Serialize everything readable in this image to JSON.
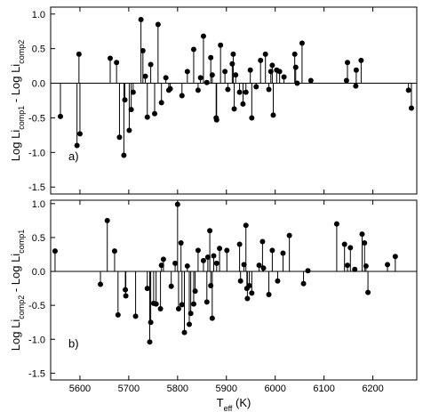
{
  "chart_data": [
    {
      "type": "stem",
      "annotation": "a)",
      "color": "#000000",
      "ylabel": [
        "Log Li",
        "comp1",
        " - Log Li",
        "comp2"
      ],
      "xlim": [
        5540,
        6290
      ],
      "ylim": [
        -1.6,
        1.1
      ],
      "xticks": [
        5600,
        5700,
        5800,
        5900,
        6000,
        6100,
        6200
      ],
      "yticks": [
        {
          "value": -1.5,
          "label": "-1.5"
        },
        {
          "value": -1.0,
          "label": "-1.0"
        },
        -0.5,
        {
          "value": 0.0,
          "label": "0.0"
        },
        0.5,
        {
          "value": 1.0,
          "label": "1.0"
        }
      ],
      "x": [
        5560,
        5594,
        5598,
        5600,
        5662,
        5675,
        5681,
        5690,
        5692,
        5701,
        5705,
        5709,
        5725,
        5729,
        5734,
        5738,
        5745,
        5753,
        5760,
        5767,
        5776,
        5782,
        5785,
        5809,
        5820,
        5833,
        5842,
        5847,
        5853,
        5860,
        5868,
        5871,
        5879,
        5880,
        5888,
        5897,
        5903,
        5912,
        5914,
        5916,
        5919,
        5927,
        5934,
        5940,
        5949,
        5952,
        5961,
        5970,
        5980,
        5987,
        5991,
        5994,
        5996,
        6003,
        6009,
        6018,
        6040,
        6042,
        6045,
        6055,
        6073,
        6146,
        6148,
        6165,
        6166,
        6176,
        6273,
        6279
      ],
      "values": [
        -0.48,
        -0.9,
        0.42,
        -0.73,
        0.36,
        0.3,
        -0.78,
        -1.04,
        -0.24,
        -0.68,
        -0.38,
        -0.13,
        0.92,
        0.47,
        0.1,
        -0.49,
        0.27,
        -0.44,
        0.85,
        -0.28,
        0.08,
        -0.1,
        -0.08,
        -0.18,
        0.17,
        0.49,
        -0.1,
        0.08,
        0.68,
        0.01,
        0.37,
        0.12,
        -0.5,
        -0.53,
        0.55,
        0.17,
        -0.09,
        0.28,
        0.42,
        -0.37,
        0.12,
        -0.13,
        -0.3,
        -0.13,
        0.19,
        -0.5,
        -0.05,
        0.33,
        0.42,
        -0.09,
        0.17,
        0.26,
        -0.46,
        0.19,
        0.17,
        0.09,
        0.42,
        0.23,
        0.0,
        0.58,
        0.04,
        0.04,
        0.3,
        -0.04,
        0.19,
        0.33,
        -0.1,
        -0.36
      ]
    },
    {
      "type": "stem",
      "annotation": "b)",
      "color": "#000000",
      "ylabel": [
        "Log Li",
        "comp2",
        " - Log Li",
        "comp1"
      ],
      "xlabel": [
        "T",
        "eff",
        " (K)"
      ],
      "xlim": [
        5540,
        6290
      ],
      "ylim": [
        -1.6,
        1.05
      ],
      "xticks": [
        5600,
        5700,
        5800,
        5900,
        6000,
        6100,
        6200
      ],
      "yticks": [
        {
          "value": -1.5,
          "label": "-1.5"
        },
        {
          "value": -1.0,
          "label": "-1.0"
        },
        -0.5,
        {
          "value": 0.0,
          "label": "0.0"
        },
        0.5,
        {
          "value": 1.0,
          "label": "1.0"
        }
      ],
      "x": [
        5549,
        5642,
        5656,
        5671,
        5678,
        5693,
        5694,
        5714,
        5738,
        5743,
        5745,
        5751,
        5756,
        5765,
        5767,
        5771,
        5787,
        5795,
        5800,
        5802,
        5807,
        5809,
        5814,
        5820,
        5824,
        5827,
        5833,
        5836,
        5842,
        5853,
        5860,
        5862,
        5866,
        5868,
        5871,
        5874,
        5880,
        5886,
        5901,
        5927,
        5929,
        5936,
        5940,
        5942,
        5943,
        5947,
        5952,
        5967,
        5974,
        5976,
        5987,
        5994,
        6005,
        6016,
        6029,
        6058,
        6067,
        6126,
        6142,
        6148,
        6154,
        6163,
        6178,
        6183,
        6186,
        6190,
        6230,
        6246
      ],
      "values": [
        0.3,
        -0.19,
        0.75,
        0.3,
        -0.64,
        -0.27,
        -0.36,
        -0.66,
        -0.25,
        -1.04,
        -0.75,
        -0.47,
        -0.48,
        -0.55,
        0.09,
        0.18,
        -0.22,
        0.12,
        0.99,
        -0.55,
        0.42,
        -0.49,
        -0.9,
        0.08,
        -0.78,
        -0.62,
        -0.48,
        -0.29,
        0.31,
        0.16,
        -0.45,
        0.21,
        0.6,
        -0.21,
        -0.69,
        0.23,
        0.12,
        0.34,
        0.31,
        0.4,
        -0.14,
        0.1,
        0.68,
        -0.25,
        -0.4,
        -0.21,
        -0.32,
        0.09,
        0.44,
        0.05,
        -0.34,
        0.31,
        -0.14,
        0.27,
        0.53,
        -0.18,
        0.01,
        0.7,
        0.4,
        0.09,
        0.35,
        0.03,
        0.55,
        0.42,
        0.08,
        -0.31,
        0.1,
        0.22
      ]
    }
  ]
}
